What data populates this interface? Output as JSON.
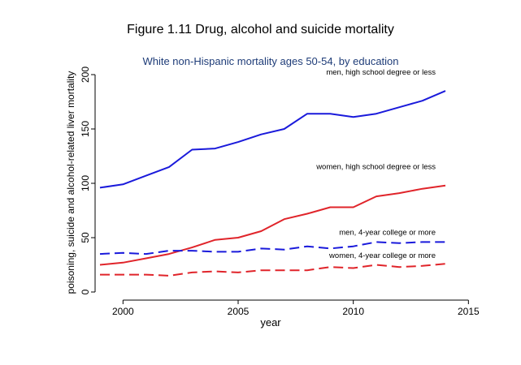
{
  "figure_title": "Figure 1.11  Drug, alcohol and suicide mortality",
  "chart_data": {
    "type": "line",
    "title": "White non-Hispanic mortality ages 50-54, by education",
    "xlabel": "year",
    "ylabel": "poisoning, suicide and alcohol-related liver mortality",
    "xlim": [
      1999,
      2015
    ],
    "ylim": [
      0,
      200
    ],
    "xticks": [
      2000,
      2005,
      2010,
      2015
    ],
    "yticks": [
      0,
      50,
      100,
      150,
      200
    ],
    "grid": false,
    "x": [
      1999,
      2000,
      2001,
      2002,
      2003,
      2004,
      2005,
      2006,
      2007,
      2008,
      2009,
      2010,
      2011,
      2012,
      2013,
      2014
    ],
    "series": [
      {
        "name": "men, high school degree or less",
        "color": "#1a1adb",
        "dash": "solid",
        "values": [
          96,
          99,
          107,
          115,
          131,
          132,
          138,
          145,
          150,
          164,
          164,
          161,
          164,
          170,
          176,
          185
        ]
      },
      {
        "name": "women, high school degree or less",
        "color": "#e0242a",
        "dash": "solid",
        "values": [
          25,
          27,
          31,
          35,
          41,
          48,
          50,
          56,
          67,
          72,
          78,
          78,
          88,
          91,
          95,
          98
        ]
      },
      {
        "name": "men, 4-year college or more",
        "color": "#1a1adb",
        "dash": "dashed",
        "values": [
          35,
          36,
          35,
          38,
          38,
          37,
          37,
          40,
          39,
          42,
          40,
          42,
          46,
          45,
          46,
          46
        ]
      },
      {
        "name": "women, 4-year college or more",
        "color": "#e0242a",
        "dash": "dashed",
        "values": [
          16,
          16,
          16,
          15,
          18,
          19,
          18,
          20,
          20,
          20,
          23,
          22,
          25,
          23,
          24,
          26
        ]
      }
    ]
  }
}
